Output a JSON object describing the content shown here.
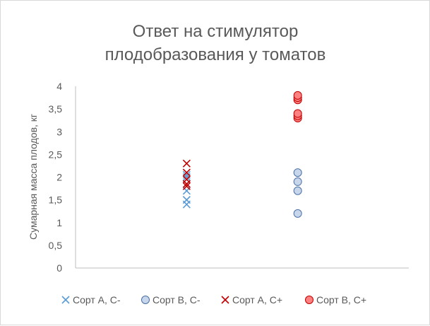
{
  "chart_data": {
    "type": "scatter",
    "title_lines": [
      "Ответ на стимулятор",
      "плодобразования у томатов"
    ],
    "xlabel": "",
    "ylabel": "Сумарная масса плодов, кг",
    "ylim": [
      0,
      4
    ],
    "xlim": [
      0,
      3
    ],
    "y_ticks": [
      "0",
      "0,5",
      "1",
      "1,5",
      "2",
      "2,5",
      "3",
      "3,5",
      "4"
    ],
    "grid": false,
    "legend_position": "bottom",
    "series": [
      {
        "name": "Сорт А, С-",
        "marker": "x",
        "color": "#5b9bd5",
        "x": [
          1,
          1,
          1,
          1,
          1,
          1
        ],
        "y": [
          1.4,
          1.5,
          1.7,
          1.85,
          2.0,
          2.05
        ]
      },
      {
        "name": "Сорт В, С-",
        "marker": "circle",
        "color": "#4a6fa5",
        "fill": "#c7d6ea",
        "x": [
          2,
          2,
          2,
          2
        ],
        "y": [
          1.2,
          1.7,
          1.9,
          2.1
        ]
      },
      {
        "name": "Сорт А, С+",
        "marker": "x",
        "color": "#c00000",
        "x": [
          1,
          1,
          1,
          1,
          1
        ],
        "y": [
          1.8,
          1.85,
          1.95,
          2.1,
          2.3
        ]
      },
      {
        "name": "Сорт В, С+",
        "marker": "circle",
        "color": "#c00000",
        "fill": "#ff8080",
        "x": [
          2,
          2,
          2,
          2,
          2,
          2
        ],
        "y": [
          3.3,
          3.35,
          3.4,
          3.7,
          3.75,
          3.8
        ]
      }
    ]
  }
}
